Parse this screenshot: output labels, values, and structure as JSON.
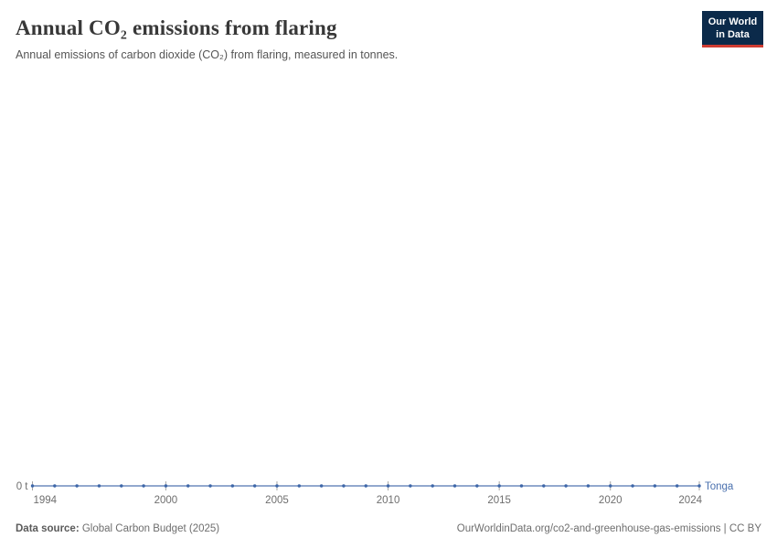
{
  "header": {
    "title": "Annual CO₂ emissions from flaring",
    "subtitle": "Annual emissions of carbon dioxide (CO₂) from flaring, measured in tonnes.",
    "logo": {
      "line1": "Our World",
      "line2": "in Data",
      "bg_color": "#0b2a4a",
      "accent_color": "#cf3c32"
    }
  },
  "chart_data": {
    "type": "line",
    "title": "Annual CO₂ emissions from flaring",
    "subtitle": "Annual emissions of carbon dioxide (CO₂) from flaring, measured in tonnes.",
    "x": [
      1994,
      1995,
      1996,
      1997,
      1998,
      1999,
      2000,
      2001,
      2002,
      2003,
      2004,
      2005,
      2006,
      2007,
      2008,
      2009,
      2010,
      2011,
      2012,
      2013,
      2014,
      2015,
      2016,
      2017,
      2018,
      2019,
      2020,
      2021,
      2022,
      2023,
      2024
    ],
    "series": [
      {
        "name": "Tonga",
        "color": "#3d66a8",
        "values": [
          0,
          0,
          0,
          0,
          0,
          0,
          0,
          0,
          0,
          0,
          0,
          0,
          0,
          0,
          0,
          0,
          0,
          0,
          0,
          0,
          0,
          0,
          0,
          0,
          0,
          0,
          0,
          0,
          0,
          0,
          0
        ]
      }
    ],
    "x_ticks": [
      1994,
      2000,
      2005,
      2010,
      2015,
      2020,
      2024
    ],
    "y_ticks": [
      "0 t"
    ],
    "unit": "t",
    "grid": false,
    "legend_position": "end-of-line",
    "axis_text_color": "#6e6e6e",
    "tick_mark_color": "#a5a5a5",
    "entity_label_color": "#4a70ae"
  },
  "footer": {
    "datasource_label": "Data source:",
    "datasource_value": " Global Carbon Budget (2025)",
    "rights": "OurWorldinData.org/co2-and-greenhouse-gas-emissions | CC BY"
  }
}
